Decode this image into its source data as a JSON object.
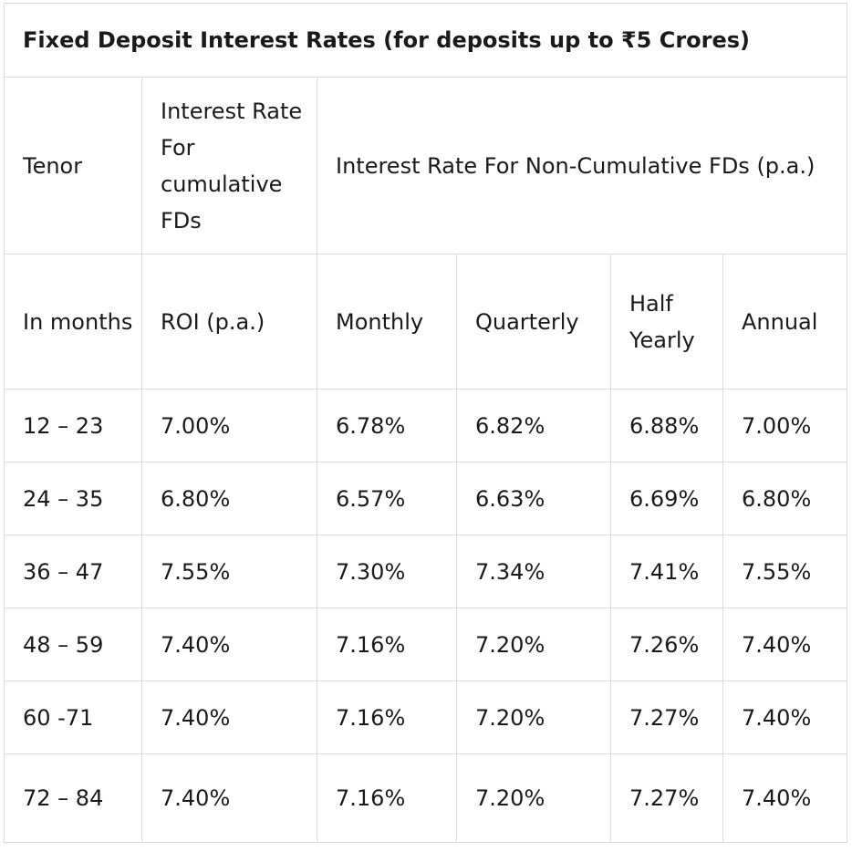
{
  "table": {
    "title": "Fixed Deposit Interest Rates (for deposits up to ₹5 Crores)",
    "header_row_1": {
      "tenor": "Tenor",
      "cumulative": "Interest Rate For cumulative FDs",
      "non_cumulative": "Interest Rate For Non-Cumulative FDs (p.a.)"
    },
    "header_row_2": {
      "months": "In months",
      "roi": "ROI (p.a.)",
      "monthly": "Monthly",
      "quarterly": "Quarterly",
      "half_yearly": "Half Yearly",
      "annual": "Annual"
    },
    "rows": [
      {
        "tenor": "12 – 23",
        "roi": "7.00%",
        "monthly": "6.78%",
        "quarterly": "6.82%",
        "half_yearly": "6.88%",
        "annual": "7.00%"
      },
      {
        "tenor": "24 – 35",
        "roi": "6.80%",
        "monthly": "6.57%",
        "quarterly": "6.63%",
        "half_yearly": "6.69%",
        "annual": "6.80%"
      },
      {
        "tenor": "36 – 47",
        "roi": "7.55%",
        "monthly": "7.30%",
        "quarterly": "7.34%",
        "half_yearly": "7.41%",
        "annual": "7.55%"
      },
      {
        "tenor": "48 – 59",
        "roi": "7.40%",
        "monthly": "7.16%",
        "quarterly": "7.20%",
        "half_yearly": "7.26%",
        "annual": "7.40%"
      },
      {
        "tenor": "60 -71",
        "roi": "7.40%",
        "monthly": "7.16%",
        "quarterly": "7.20%",
        "half_yearly": "7.27%",
        "annual": "7.40%"
      },
      {
        "tenor": "72 – 84",
        "roi": "7.40%",
        "monthly": "7.16%",
        "quarterly": "7.20%",
        "half_yearly": "7.27%",
        "annual": "7.40%"
      }
    ]
  }
}
